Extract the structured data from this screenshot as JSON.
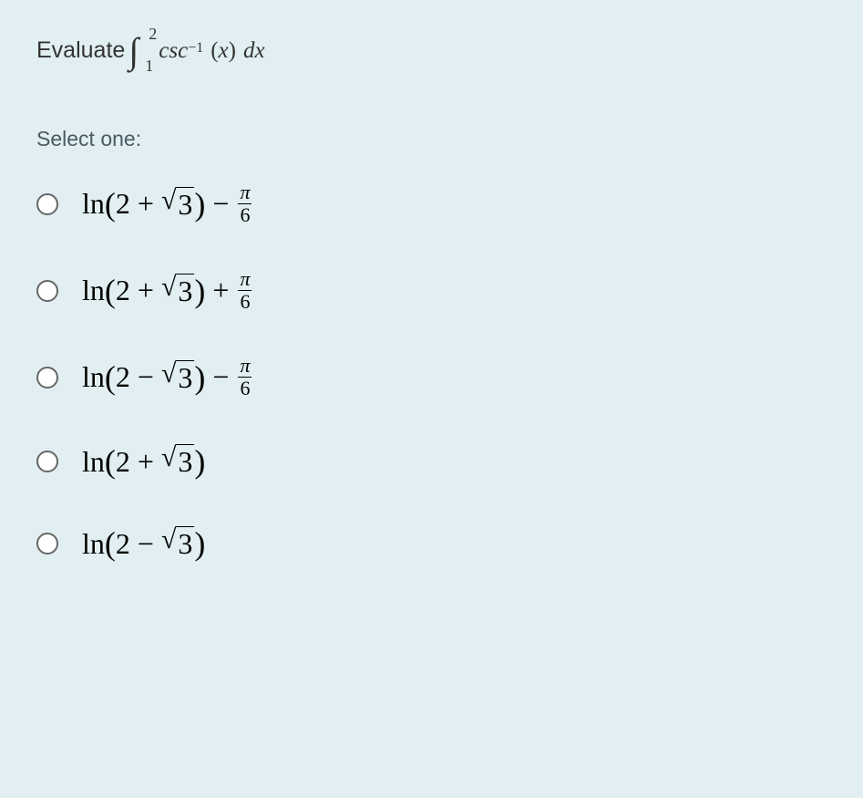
{
  "background_color": "#e1eff2",
  "text_color": "#333333",
  "select_color": "#4a5a63",
  "radio_border_color": "#666666",
  "question": {
    "prefix": "Evaluate ",
    "integral_lower": "1",
    "integral_upper": "2",
    "func": "csc",
    "exponent": "−1",
    "arg": "(x)",
    "diff": "dx"
  },
  "select_label": "Select one:",
  "options": [
    {
      "ln": "ln",
      "paren_open": "(",
      "first": "2",
      "operator1": "+",
      "sqrt_arg": "3",
      "paren_close": ")",
      "operator2": "−",
      "has_frac": true,
      "frac_num": "π",
      "frac_den": "6"
    },
    {
      "ln": "ln",
      "paren_open": "(",
      "first": "2",
      "operator1": "+",
      "sqrt_arg": "3",
      "paren_close": ")",
      "operator2": "+",
      "has_frac": true,
      "frac_num": "π",
      "frac_den": "6"
    },
    {
      "ln": "ln",
      "paren_open": "(",
      "first": "2",
      "operator1": "−",
      "sqrt_arg": "3",
      "paren_close": ")",
      "operator2": "−",
      "has_frac": true,
      "frac_num": "π",
      "frac_den": "6"
    },
    {
      "ln": "ln",
      "paren_open": "(",
      "first": "2",
      "operator1": "+",
      "sqrt_arg": "3",
      "paren_close": ")",
      "has_frac": false
    },
    {
      "ln": "ln",
      "paren_open": "(",
      "first": "2",
      "operator1": "−",
      "sqrt_arg": "3",
      "paren_close": ")",
      "has_frac": false
    }
  ]
}
